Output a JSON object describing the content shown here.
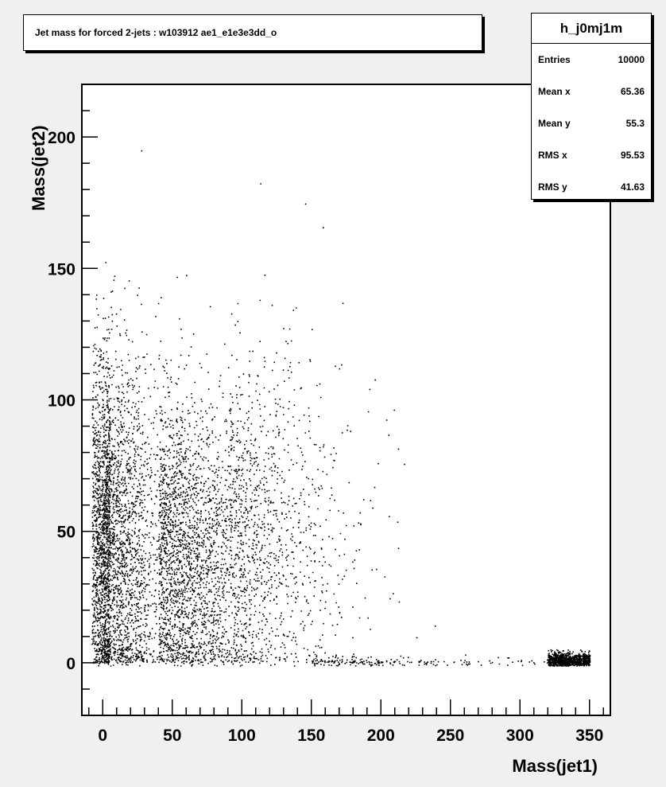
{
  "title": "Jet mass for forced 2-jets : w103912 ae1_e1e3e3dd_o",
  "stats": {
    "name": "h_j0mj1m",
    "rows": [
      {
        "label": "Entries",
        "value": "10000"
      },
      {
        "label": "Mean x",
        "value": "65.36"
      },
      {
        "label": "Mean y",
        "value": "55.3"
      },
      {
        "label": "RMS x",
        "value": "95.53"
      },
      {
        "label": "RMS y",
        "value": "41.63"
      }
    ]
  },
  "chart_data": {
    "type": "scatter",
    "title": "Jet mass for forced 2-jets : w103912 ae1_e1e3e3dd_o",
    "xlabel": "Mass(jet1)",
    "ylabel": "Mass(jet2)",
    "xlim": [
      -15,
      365
    ],
    "ylim": [
      -20,
      220
    ],
    "xticks": [
      0,
      50,
      100,
      150,
      200,
      250,
      300,
      350
    ],
    "yticks": [
      0,
      50,
      100,
      150,
      200
    ],
    "series": [
      {
        "description_points": "approximate shape of the distribution; rendered as a point cloud",
        "clusters": [
          {
            "x_center": 5,
            "x_spread": 18,
            "y_center": 45,
            "y_spread": 35,
            "count": 5200
          },
          {
            "x_center": 40,
            "x_spread": 35,
            "y_center": 40,
            "y_spread": 30,
            "count": 2500
          },
          {
            "x_center": 90,
            "x_spread": 45,
            "y_center": 50,
            "y_spread": 35,
            "count": 900
          },
          {
            "x_center": 320,
            "x_spread": 20,
            "y_center": 1,
            "y_spread": 1.5,
            "count": 900
          },
          {
            "x_center": 150,
            "x_spread": 80,
            "y_center": 0,
            "y_spread": 1.5,
            "count": 200
          }
        ]
      }
    ],
    "grid": false,
    "color": "#000000"
  }
}
